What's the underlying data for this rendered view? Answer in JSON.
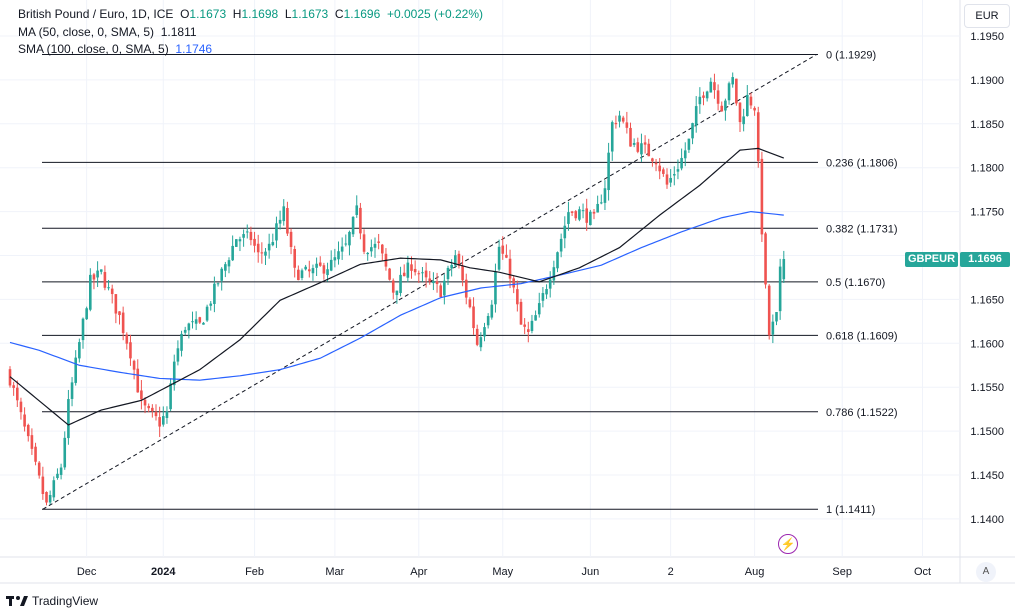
{
  "header": {
    "symbol_title": "British Pound / Euro, 1D, ICE",
    "o_label": "O",
    "o": "1.1673",
    "h_label": "H",
    "h": "1.1698",
    "l_label": "L",
    "l": "1.1673",
    "c_label": "C",
    "c": "1.1696",
    "change": "+0.0025 (+0.22%)",
    "ma_label": "MA (50, close, 0, SMA, 5)",
    "ma_value": "1.1811",
    "sma_label": "SMA (100, close, 0, SMA, 5)",
    "sma_value": "1.1746"
  },
  "currency_button": "EUR",
  "auto_button": "A",
  "pair_tag": "GBPEUR",
  "last_price": "1.1696",
  "brand": "TradingView",
  "colors": {
    "up": "#26a69a",
    "down": "#ef5350",
    "ma": "#131722",
    "sma": "#2962ff",
    "fib": "#131722"
  },
  "chart_data": {
    "type": "candlestick",
    "title": "British Pound / Euro, 1D",
    "ylim": [
      1.135,
      1.196
    ],
    "y_ticks": [
      "1.1950",
      "1.1900",
      "1.1850",
      "1.1800",
      "1.1750",
      "1.1700",
      "1.1650",
      "1.1600",
      "1.1550",
      "1.1500",
      "1.1450",
      "1.1400"
    ],
    "x_ticks": [
      {
        "label": "Dec",
        "bar": 21
      },
      {
        "label": "2024",
        "bar": 42,
        "bold": true
      },
      {
        "label": "Feb",
        "bar": 67
      },
      {
        "label": "Mar",
        "bar": 89
      },
      {
        "label": "Apr",
        "bar": 112
      },
      {
        "label": "May",
        "bar": 135
      },
      {
        "label": "Jun",
        "bar": 159
      },
      {
        "label": "2",
        "bar": 181
      },
      {
        "label": "Aug",
        "bar": 204
      },
      {
        "label": "Sep",
        "bar": 228
      },
      {
        "label": "Oct",
        "bar": 250
      }
    ],
    "close_keypoints": [
      [
        0,
        1.156
      ],
      [
        10,
        1.1415
      ],
      [
        14,
        1.146
      ],
      [
        16,
        1.153
      ],
      [
        19,
        1.16
      ],
      [
        22,
        1.167
      ],
      [
        25,
        1.168
      ],
      [
        27,
        1.166
      ],
      [
        30,
        1.163
      ],
      [
        33,
        1.159
      ],
      [
        36,
        1.153
      ],
      [
        38,
        1.152
      ],
      [
        41,
        1.151
      ],
      [
        43,
        1.152
      ],
      [
        45,
        1.158
      ],
      [
        48,
        1.162
      ],
      [
        52,
        1.162
      ],
      [
        55,
        1.165
      ],
      [
        58,
        1.168
      ],
      [
        62,
        1.172
      ],
      [
        66,
        1.172
      ],
      [
        68,
        1.17
      ],
      [
        71,
        1.171
      ],
      [
        75,
        1.175
      ],
      [
        78,
        1.168
      ],
      [
        82,
        1.168
      ],
      [
        88,
        1.169
      ],
      [
        92,
        1.171
      ],
      [
        95,
        1.175
      ],
      [
        97,
        1.171
      ],
      [
        101,
        1.171
      ],
      [
        105,
        1.166
      ],
      [
        110,
        1.169
      ],
      [
        114,
        1.167
      ],
      [
        118,
        1.166
      ],
      [
        122,
        1.17
      ],
      [
        126,
        1.164
      ],
      [
        128,
        1.16
      ],
      [
        132,
        1.165
      ],
      [
        134,
        1.171
      ],
      [
        137,
        1.168
      ],
      [
        140,
        1.162
      ],
      [
        142,
        1.161
      ],
      [
        145,
        1.164
      ],
      [
        148,
        1.168
      ],
      [
        151,
        1.172
      ],
      [
        153,
        1.175
      ],
      [
        156,
        1.175
      ],
      [
        160,
        1.174
      ],
      [
        163,
        1.178
      ],
      [
        165,
        1.185
      ],
      [
        167,
        1.186
      ],
      [
        170,
        1.183
      ],
      [
        174,
        1.182
      ],
      [
        177,
        1.181
      ],
      [
        180,
        1.178
      ],
      [
        184,
        1.181
      ],
      [
        186,
        1.183
      ],
      [
        189,
        1.188
      ],
      [
        192,
        1.19
      ],
      [
        195,
        1.187
      ],
      [
        198,
        1.19
      ],
      [
        200,
        1.185
      ],
      [
        202,
        1.188
      ],
      [
        204,
        1.187
      ],
      [
        205,
        1.18
      ],
      [
        207,
        1.166
      ],
      [
        208,
        1.161
      ],
      [
        210,
        1.163
      ],
      [
        211,
        1.168
      ],
      [
        212,
        1.1696
      ]
    ],
    "ma50": [
      [
        0,
        1.1562
      ],
      [
        16,
        1.1507
      ],
      [
        25,
        1.1524
      ],
      [
        36,
        1.1535
      ],
      [
        52,
        1.157
      ],
      [
        63,
        1.1604
      ],
      [
        74,
        1.1649
      ],
      [
        85,
        1.1669
      ],
      [
        96,
        1.169
      ],
      [
        107,
        1.1697
      ],
      [
        118,
        1.1695
      ],
      [
        126,
        1.1686
      ],
      [
        134,
        1.1681
      ],
      [
        145,
        1.167
      ],
      [
        156,
        1.1686
      ],
      [
        167,
        1.1709
      ],
      [
        178,
        1.1746
      ],
      [
        189,
        1.178
      ],
      [
        200,
        1.182
      ],
      [
        205,
        1.1822
      ],
      [
        212,
        1.1811
      ]
    ],
    "sma100": [
      [
        0,
        1.1601
      ],
      [
        8,
        1.1592
      ],
      [
        19,
        1.1575
      ],
      [
        30,
        1.1567
      ],
      [
        41,
        1.156
      ],
      [
        52,
        1.1558
      ],
      [
        63,
        1.1563
      ],
      [
        74,
        1.157
      ],
      [
        85,
        1.1583
      ],
      [
        96,
        1.1606
      ],
      [
        107,
        1.1632
      ],
      [
        118,
        1.1652
      ],
      [
        129,
        1.1663
      ],
      [
        140,
        1.1668
      ],
      [
        151,
        1.1678
      ],
      [
        162,
        1.1689
      ],
      [
        173,
        1.1709
      ],
      [
        184,
        1.1727
      ],
      [
        195,
        1.1743
      ],
      [
        203,
        1.175
      ],
      [
        212,
        1.1746
      ]
    ],
    "trend_line": {
      "from": [
        9,
        1.1411
      ],
      "to": [
        221,
        1.1929
      ]
    },
    "fib_levels": [
      {
        "label": "0 (1.1929)",
        "price": 1.1929
      },
      {
        "label": "0.236 (1.1806)",
        "price": 1.1806
      },
      {
        "label": "0.382 (1.1731)",
        "price": 1.1731
      },
      {
        "label": "0.5 (1.1670)",
        "price": 1.167
      },
      {
        "label": "0.618 (1.1609)",
        "price": 1.1609
      },
      {
        "label": "0.786 (1.1522)",
        "price": 1.1522
      },
      {
        "label": "1 (1.1411)",
        "price": 1.1411
      }
    ]
  }
}
